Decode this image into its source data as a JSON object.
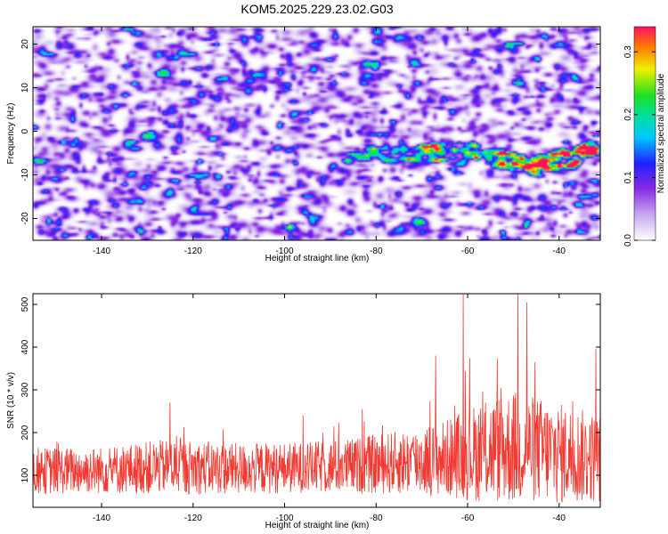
{
  "figure_title": "KOM5.2025.229.23.02.G03",
  "colors": {
    "snr_line": "#f03a32",
    "spectrogram_background": "#ffffff"
  },
  "chart_data": [
    {
      "type": "heatmap",
      "title": "KOM5.2025.229.23.02.G03",
      "xlabel": "Height of straight line (km)",
      "ylabel": "Frequency (Hz)",
      "xlim": [
        -155,
        -31
      ],
      "ylim": [
        -25,
        24
      ],
      "x_ticks": [
        -140,
        -120,
        -100,
        -80,
        -60,
        -40
      ],
      "x_tick_labels": [
        "-140",
        "-120",
        "-100",
        "-80",
        "-60",
        "-40"
      ],
      "y_ticks": [
        -20,
        -10,
        0,
        10,
        20
      ],
      "y_tick_labels": [
        "-20",
        "-10",
        "0",
        "10",
        "20"
      ],
      "colorbar": {
        "label": "Normalized spectral amplitude",
        "range": [
          0.0,
          0.34
        ],
        "ticks": [
          0.0,
          0.1,
          0.2,
          0.3
        ],
        "tick_labels": [
          "0.0",
          "0.1",
          "0.2",
          "0.3"
        ]
      },
      "noise_level": 0.06,
      "signal_trace": {
        "description": "Doppler-shifted signal band, strongest near -40 km",
        "points": [
          {
            "x": -88,
            "y": -6.5,
            "amplitude": 0.12
          },
          {
            "x": -80,
            "y": -5.5,
            "amplitude": 0.14
          },
          {
            "x": -70,
            "y": -5.0,
            "amplitude": 0.16
          },
          {
            "x": -60,
            "y": -4.0,
            "amplitude": 0.18
          },
          {
            "x": -52,
            "y": -6.5,
            "amplitude": 0.22
          },
          {
            "x": -47,
            "y": -8.0,
            "amplitude": 0.27
          },
          {
            "x": -41,
            "y": -6.0,
            "amplitude": 0.3
          },
          {
            "x": -37,
            "y": -6.5,
            "amplitude": 0.33
          },
          {
            "x": -32,
            "y": -2.5,
            "amplitude": 0.28
          }
        ]
      }
    },
    {
      "type": "line",
      "xlabel": "Height of straight line (km)",
      "ylabel": "SNR (10 * v/v)",
      "xlim": [
        -155,
        -31
      ],
      "ylim": [
        25,
        525
      ],
      "x_ticks": [
        -140,
        -120,
        -100,
        -80,
        -60,
        -40
      ],
      "x_tick_labels": [
        "-140",
        "-120",
        "-100",
        "-80",
        "-60",
        "-40"
      ],
      "y_ticks": [
        100,
        200,
        300,
        400,
        500
      ],
      "y_tick_labels": [
        "100",
        "200",
        "300",
        "400",
        "500"
      ],
      "envelope": {
        "x": [
          -155,
          -140,
          -125,
          -110,
          -95,
          -85,
          -75,
          -65,
          -60,
          -55,
          -50,
          -45,
          -40,
          -35,
          -31
        ],
        "mean": [
          110,
          112,
          120,
          115,
          118,
          122,
          130,
          140,
          150,
          160,
          165,
          160,
          150,
          145,
          140
        ],
        "spread": [
          55,
          55,
          65,
          60,
          60,
          65,
          75,
          90,
          110,
          125,
          135,
          125,
          120,
          110,
          105
        ]
      },
      "notable_peaks": [
        {
          "x": -125,
          "y": 270
        },
        {
          "x": -96,
          "y": 240
        },
        {
          "x": -83,
          "y": 255
        },
        {
          "x": -67,
          "y": 380
        },
        {
          "x": -61,
          "y": 525
        },
        {
          "x": -49,
          "y": 525
        },
        {
          "x": -47,
          "y": 505
        },
        {
          "x": -32,
          "y": 395
        }
      ]
    }
  ]
}
